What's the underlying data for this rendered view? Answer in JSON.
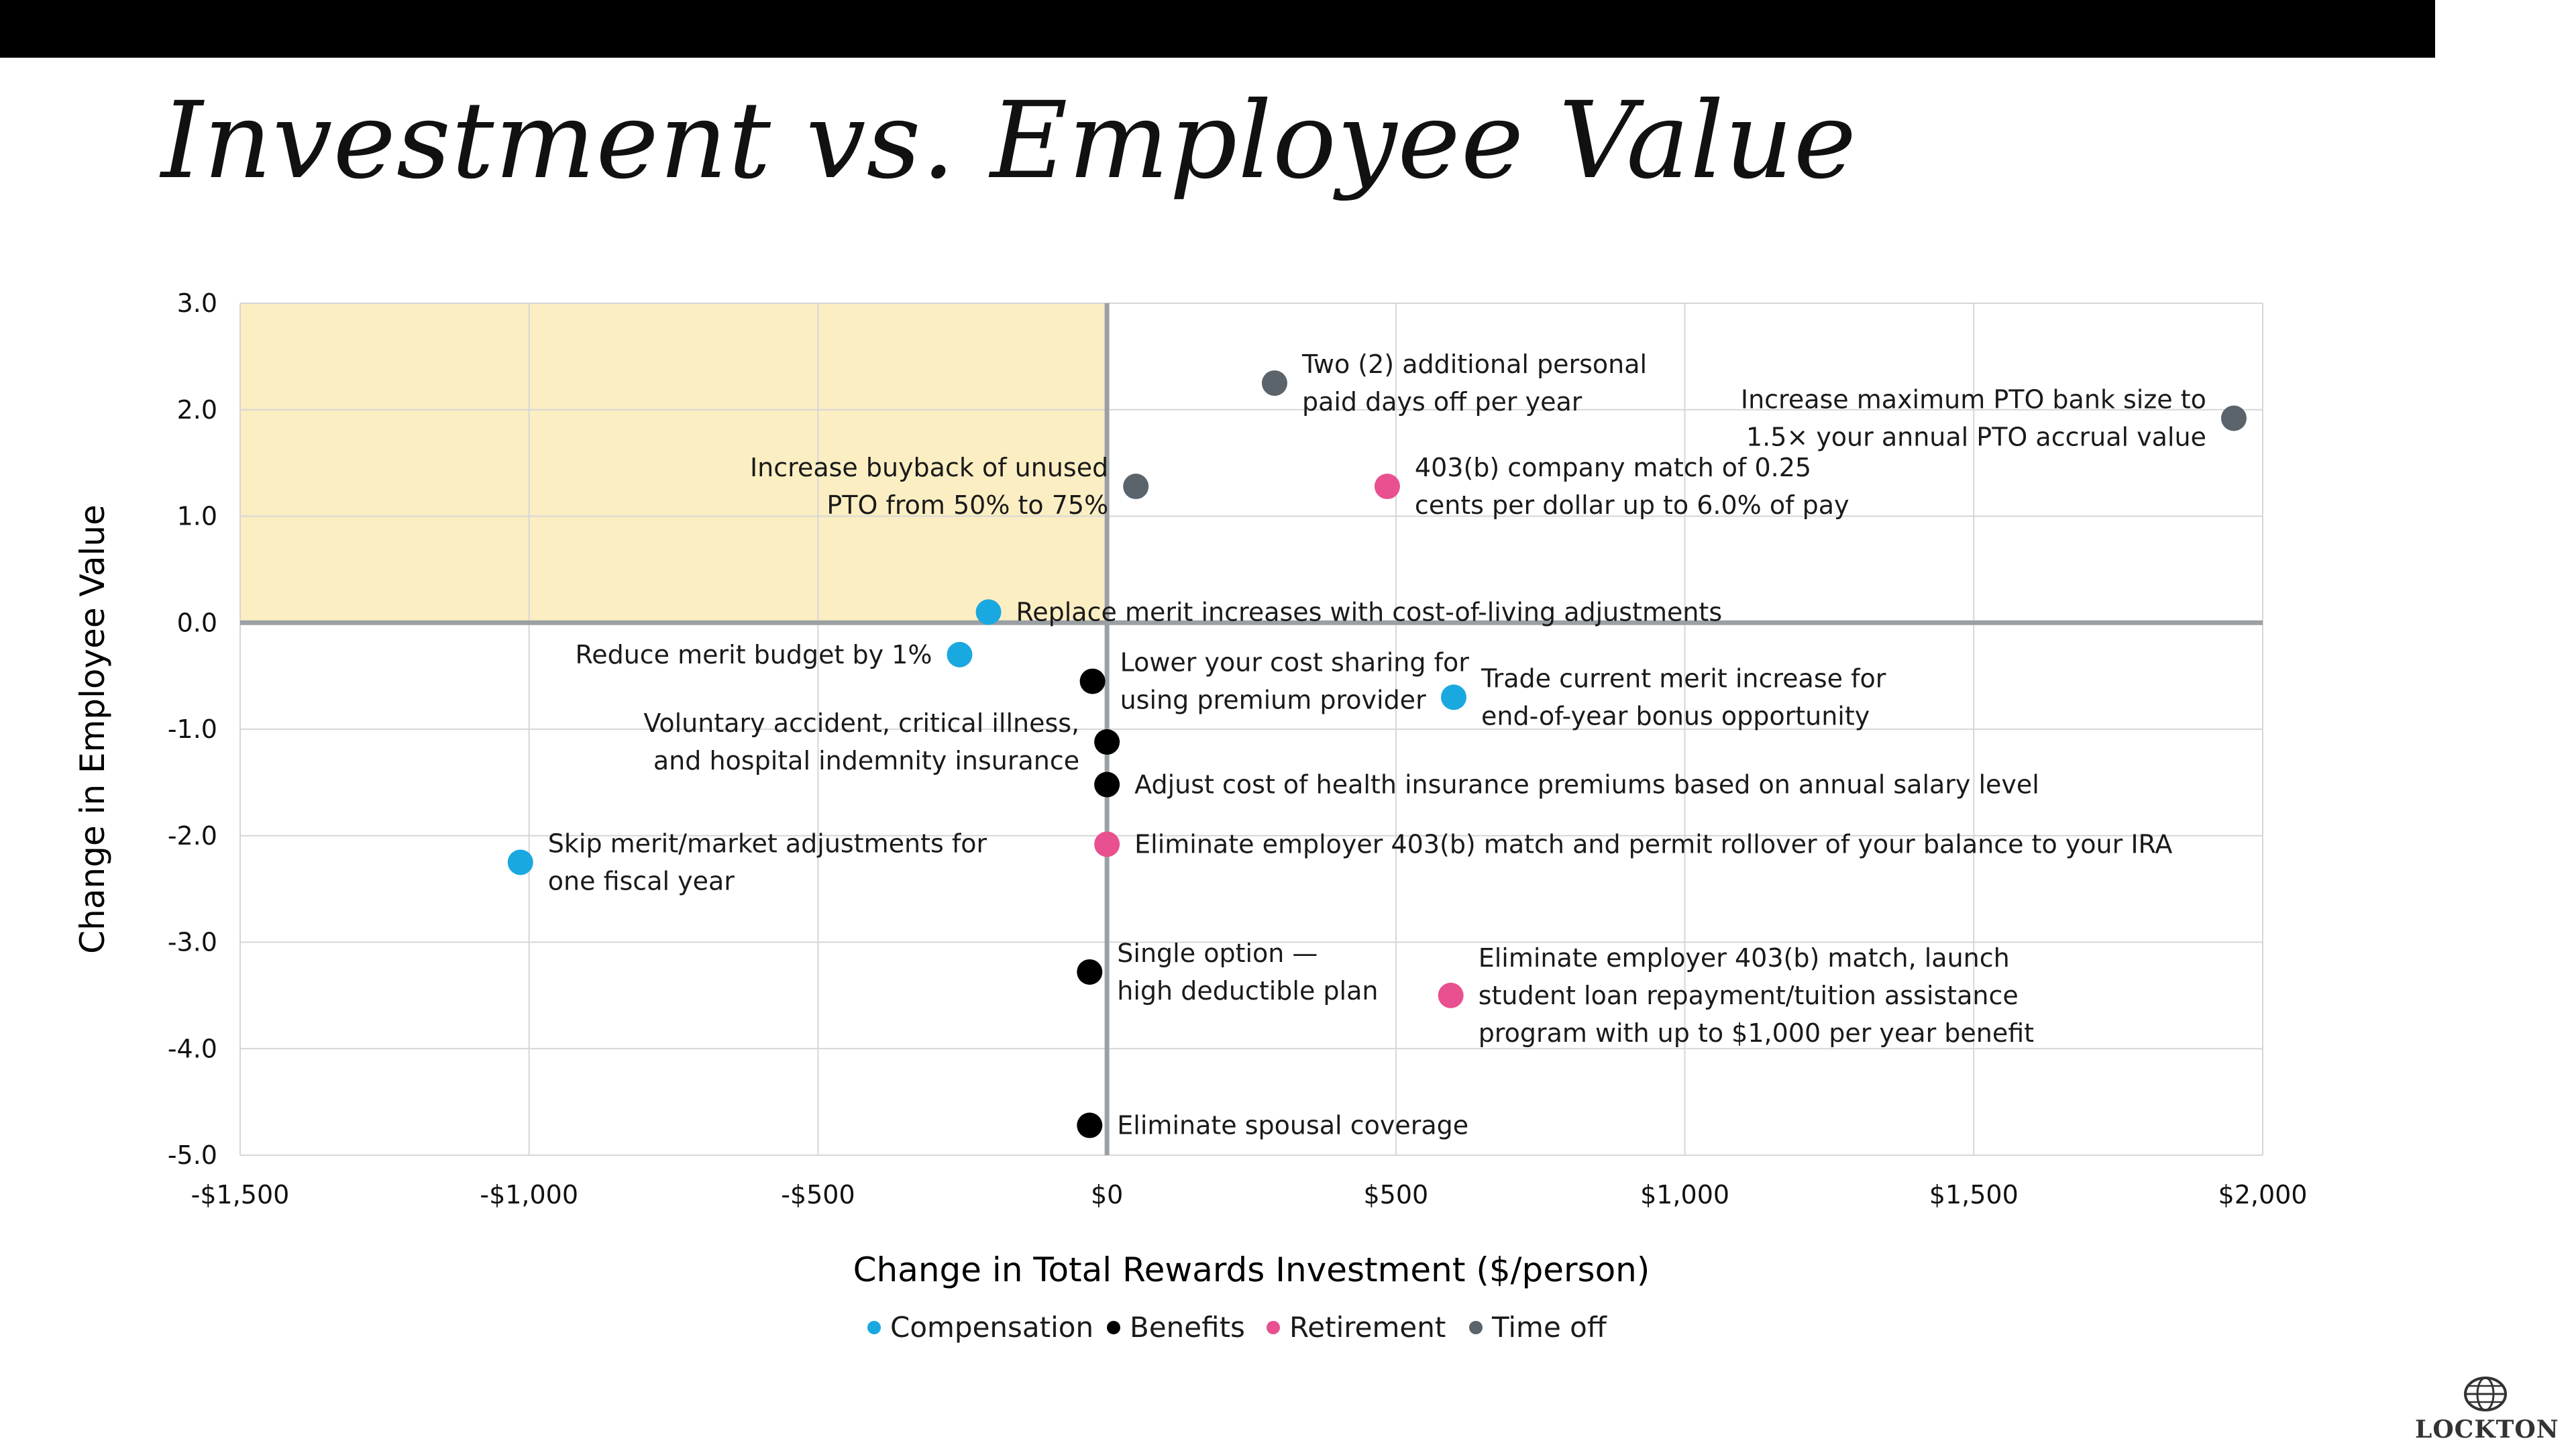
{
  "slide": {
    "title": "Investment vs. Employee Value",
    "logo": "LOCKTON"
  },
  "colors": {
    "Compensation": "#1aa8e0",
    "Benefits": "#000000",
    "Retirement": "#e8508f",
    "Time off": "#5b636b",
    "highlight": "#fbeec2",
    "axis": "#9aa0a3",
    "grid": "#d6d6d6"
  },
  "chart_data": {
    "type": "scatter",
    "xlabel": "Change in Total Rewards Investment ($/person)",
    "ylabel": "Change in Employee Value",
    "xlim": [
      -1500,
      2000
    ],
    "ylim": [
      -5,
      3
    ],
    "x_ticks": [
      -1500,
      -1000,
      -500,
      0,
      500,
      1000,
      1500,
      2000
    ],
    "x_tick_labels": [
      "-$1,500",
      "-$1,000",
      "-$500",
      "$0",
      "$500",
      "$1,000",
      "$1,500",
      "$2,000"
    ],
    "y_ticks": [
      3,
      2,
      1,
      0,
      -1,
      -2,
      -3,
      -4,
      -5
    ],
    "y_tick_labels": [
      "3.0",
      "2.0",
      "1.0",
      "0.0",
      "-1.0",
      "-2.0",
      "-3.0",
      "-4.0",
      "-5.0"
    ],
    "highlight_region": {
      "x": [
        -1500,
        0
      ],
      "y": [
        0,
        3
      ]
    },
    "grid": true,
    "legend": [
      "Compensation",
      "Benefits",
      "Retirement",
      "Time off"
    ],
    "legend_position": "bottom",
    "points": [
      {
        "category": "Time off",
        "x": 290,
        "y": 2.25,
        "label": [
          "Two (2) additional personal",
          "paid days off per year"
        ],
        "anchor": "start"
      },
      {
        "category": "Time off",
        "x": 1950,
        "y": 1.92,
        "label": [
          "Increase maximum PTO bank size to",
          "1.5× your annual PTO accrual value"
        ],
        "anchor": "end"
      },
      {
        "category": "Time off",
        "x": 50,
        "y": 1.28,
        "label": [
          "Increase buyback of unused",
          "PTO from 50% to 75%"
        ],
        "anchor": "end"
      },
      {
        "category": "Retirement",
        "x": 485,
        "y": 1.28,
        "label": [
          "403(b) company match of 0.25",
          "cents per dollar up to 6.0% of pay"
        ],
        "anchor": "start"
      },
      {
        "category": "Compensation",
        "x": -205,
        "y": 0.1,
        "label": [
          "Replace merit increases with cost-of-living adjustments"
        ],
        "anchor": "start"
      },
      {
        "category": "Compensation",
        "x": -255,
        "y": -0.3,
        "label": [
          "Reduce merit budget by 1%"
        ],
        "anchor": "end"
      },
      {
        "category": "Benefits",
        "x": -25,
        "y": -0.55,
        "label": [
          "Lower your cost sharing for",
          "using premium provider"
        ],
        "anchor": "start"
      },
      {
        "category": "Compensation",
        "x": 600,
        "y": -0.7,
        "label": [
          "Trade current merit increase for",
          "end-of-year bonus opportunity"
        ],
        "anchor": "start"
      },
      {
        "category": "Benefits",
        "x": 0,
        "y": -1.12,
        "label": [
          "Voluntary accident, critical illness,",
          "and hospital indemnity insurance"
        ],
        "anchor": "end"
      },
      {
        "category": "Benefits",
        "x": 0,
        "y": -1.52,
        "label": [
          "Adjust cost of health insurance premiums based on annual salary level"
        ],
        "anchor": "start"
      },
      {
        "category": "Retirement",
        "x": 0,
        "y": -2.08,
        "label": [
          "Eliminate employer 403(b) match and permit rollover of your balance to your IRA"
        ],
        "anchor": "start"
      },
      {
        "category": "Compensation",
        "x": -1015,
        "y": -2.25,
        "label": [
          "Skip merit/market adjustments for",
          "one fiscal year"
        ],
        "anchor": "start"
      },
      {
        "category": "Benefits",
        "x": -30,
        "y": -3.28,
        "label": [
          "Single option —",
          "high deductible plan"
        ],
        "anchor": "start"
      },
      {
        "category": "Retirement",
        "x": 595,
        "y": -3.5,
        "label": [
          "Eliminate employer 403(b) match, launch",
          "student loan repayment/tuition assistance",
          "program with up to $1,000 per year benefit"
        ],
        "anchor": "start"
      },
      {
        "category": "Benefits",
        "x": -30,
        "y": -4.72,
        "label": [
          "Eliminate spousal coverage"
        ],
        "anchor": "start"
      }
    ]
  }
}
